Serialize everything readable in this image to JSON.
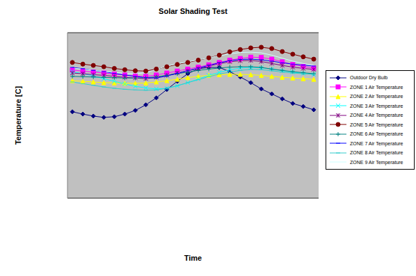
{
  "chart_data": {
    "type": "line",
    "title": "Solar Shading Test",
    "x_label": "Time",
    "y_label": "Temperature [C]",
    "categories": [
      null,
      null,
      null,
      null,
      null,
      null,
      null,
      null,
      null,
      null,
      null,
      null,
      null,
      null,
      null,
      null,
      null,
      null,
      null,
      null,
      null,
      null,
      null,
      null
    ],
    "ylim": [
      -20,
      30
    ],
    "yticks": [
      -20,
      -15,
      -10,
      -5,
      0,
      5,
      10,
      15,
      20,
      25,
      30
    ],
    "grid": true,
    "tick_labels": false,
    "legend": "right",
    "series": [
      {
        "name": "Outdoor Dry Bulb",
        "color": "#000080",
        "marker": "diamond",
        "values": [
          6.1,
          5.4,
          4.8,
          4.4,
          4.6,
          5.4,
          6.5,
          8.2,
          10.3,
          12.8,
          15.3,
          17.6,
          19.1,
          19.5,
          19.5,
          18.2,
          16.6,
          14.9,
          13.0,
          11.5,
          10.0,
          8.6,
          7.7,
          6.7
        ]
      },
      {
        "name": "ZONE 1 Air Temperature",
        "color": "#ff00ff",
        "marker": "square",
        "values": [
          18.7,
          18.4,
          18.1,
          17.8,
          17.5,
          17.2,
          16.9,
          16.8,
          17.2,
          17.8,
          18.4,
          19.0,
          19.6,
          20.3,
          21.0,
          21.7,
          22.2,
          22.6,
          22.5,
          22.0,
          21.2,
          20.4,
          19.8,
          19.3
        ]
      },
      {
        "name": "ZONE 2 Air Temperature",
        "color": "#ffff00",
        "marker": "triangle",
        "values": [
          15.5,
          15.3,
          15.1,
          14.9,
          14.8,
          14.7,
          14.7,
          14.8,
          15.1,
          15.5,
          15.9,
          16.4,
          16.8,
          17.1,
          17.3,
          17.4,
          17.4,
          17.3,
          17.1,
          16.8,
          16.5,
          16.3,
          16.1,
          15.9
        ]
      },
      {
        "name": "ZONE 3 Air Temperature",
        "color": "#00ffff",
        "marker": "x",
        "values": [
          18.2,
          17.6,
          16.9,
          16.1,
          15.3,
          14.5,
          13.8,
          13.3,
          13.0,
          13.2,
          13.9,
          14.9,
          16.0,
          17.1,
          18.0,
          18.8,
          19.3,
          19.5,
          19.4,
          19.0,
          18.5,
          18.1,
          17.7,
          17.4
        ]
      },
      {
        "name": "ZONE 4 Air Temperature",
        "color": "#800080",
        "marker": "star",
        "values": [
          17.8,
          17.6,
          17.3,
          17.1,
          16.8,
          16.5,
          16.3,
          16.1,
          16.5,
          17.1,
          17.8,
          18.5,
          19.2,
          19.9,
          20.6,
          21.2,
          21.5,
          21.6,
          21.3,
          20.7,
          20.1,
          19.6,
          19.2,
          18.9
        ]
      },
      {
        "name": "ZONE 5 Air Temperature",
        "color": "#800000",
        "marker": "circle",
        "values": [
          21.0,
          20.5,
          20.1,
          19.7,
          19.2,
          18.8,
          18.5,
          18.4,
          19.0,
          19.7,
          20.4,
          21.0,
          21.7,
          22.4,
          23.2,
          24.2,
          24.9,
          25.4,
          25.6,
          25.2,
          24.3,
          23.5,
          22.7,
          22.0
        ]
      },
      {
        "name": "ZONE 6 Air Temperature",
        "color": "#008080",
        "marker": "plus",
        "values": [
          16.8,
          16.7,
          16.6,
          16.5,
          16.4,
          16.3,
          16.3,
          16.4,
          16.7,
          17.1,
          17.6,
          18.1,
          18.6,
          19.0,
          19.3,
          19.6,
          19.7,
          19.7,
          19.5,
          19.0,
          18.6,
          18.2,
          17.9,
          17.6
        ]
      },
      {
        "name": "ZONE 7 Air Temperature",
        "color": "#0000ff",
        "marker": "dash",
        "values": [
          19.5,
          19.1,
          18.6,
          18.2,
          17.7,
          17.2,
          16.8,
          16.4,
          16.3,
          16.9,
          17.7,
          18.5,
          19.3,
          20.1,
          20.9,
          21.5,
          21.9,
          22.0,
          21.8,
          21.4,
          20.9,
          20.5,
          20.2,
          19.9
        ]
      },
      {
        "name": "ZONE 8 Air Temperature",
        "color": "#33cccc",
        "marker": "dash",
        "values": [
          15.1,
          14.6,
          14.1,
          13.6,
          13.2,
          12.9,
          12.7,
          12.6,
          12.7,
          13.2,
          14.0,
          14.9,
          15.8,
          16.7,
          17.5,
          18.1,
          18.6,
          18.9,
          18.8,
          18.5,
          18.1,
          17.8,
          17.6,
          17.4
        ]
      },
      {
        "name": "ZONE 9 Air Temperature",
        "color": "#ccffff",
        "marker": "none",
        "values": [
          19.3,
          19.0,
          18.6,
          18.3,
          18.0,
          17.7,
          17.6,
          17.9,
          18.9,
          19.9,
          20.6,
          21.2,
          21.8,
          22.4,
          23.0,
          23.6,
          24.0,
          24.1,
          23.9,
          23.2,
          22.3,
          21.4,
          20.7,
          20.1
        ]
      }
    ]
  }
}
